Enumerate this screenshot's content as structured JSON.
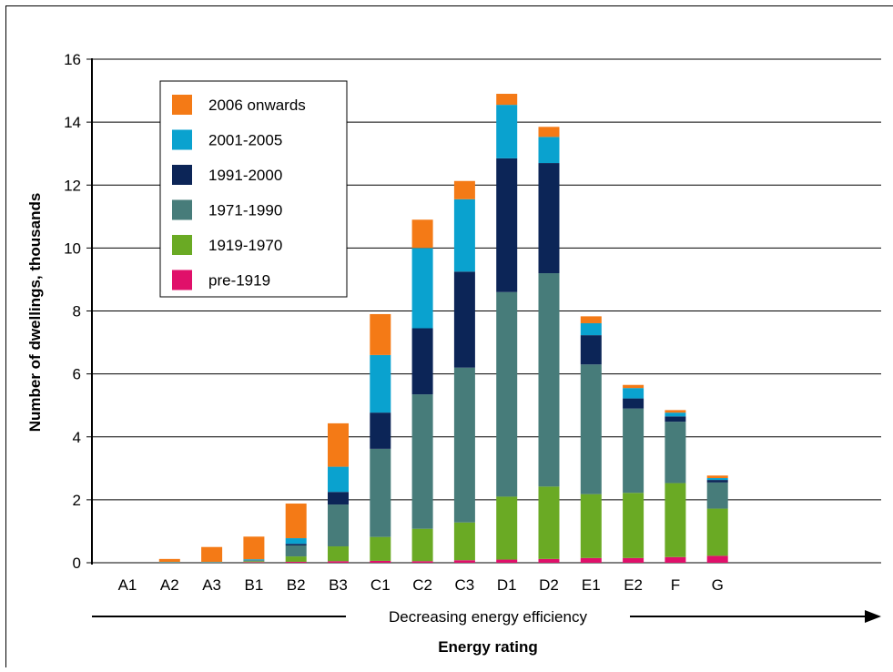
{
  "chart_data": {
    "type": "bar",
    "stacked": true,
    "title": "",
    "xlabel": "Energy rating",
    "xlabel_arrow_text": "Decreasing energy efficiency",
    "ylabel": "Number of dwellings, thousands",
    "ylim": [
      0,
      16
    ],
    "yticks": [
      0,
      2,
      4,
      6,
      8,
      10,
      12,
      14,
      16
    ],
    "grid": "horizontal",
    "legend_position": "top-left",
    "categories": [
      "A1",
      "A2",
      "A3",
      "B1",
      "B2",
      "B3",
      "C1",
      "C2",
      "C3",
      "D1",
      "D2",
      "E1",
      "E2",
      "F",
      "G"
    ],
    "series": [
      {
        "name": "pre-1919",
        "color": "#e0106a",
        "values": [
          0,
          0,
          0,
          0.02,
          0.03,
          0.05,
          0.06,
          0.05,
          0.08,
          0.1,
          0.12,
          0.15,
          0.15,
          0.18,
          0.22
        ]
      },
      {
        "name": "1919-1970",
        "color": "#6aaa24",
        "values": [
          0,
          0,
          0,
          0.03,
          0.17,
          0.47,
          0.76,
          1.03,
          1.2,
          2.0,
          2.3,
          2.03,
          2.07,
          2.35,
          1.5
        ]
      },
      {
        "name": "1971-1990",
        "color": "#477c7a",
        "values": [
          0,
          0,
          0,
          0.03,
          0.35,
          1.33,
          2.8,
          4.27,
          4.92,
          6.5,
          6.78,
          4.12,
          2.68,
          1.95,
          0.83
        ]
      },
      {
        "name": "1991-2000",
        "color": "#0c2557",
        "values": [
          0,
          0,
          0,
          0,
          0.05,
          0.4,
          1.15,
          2.1,
          3.05,
          4.25,
          3.5,
          0.93,
          0.32,
          0.17,
          0.08
        ]
      },
      {
        "name": "2001-2005",
        "color": "#0aa2cf",
        "values": [
          0,
          0.02,
          0.02,
          0.03,
          0.18,
          0.8,
          1.83,
          2.55,
          2.3,
          1.7,
          0.83,
          0.38,
          0.33,
          0.12,
          0.06
        ]
      },
      {
        "name": "2006 onwards",
        "color": "#f47a16",
        "values": [
          0,
          0.1,
          0.48,
          0.72,
          1.1,
          1.38,
          1.3,
          0.9,
          0.58,
          0.35,
          0.32,
          0.22,
          0.1,
          0.08,
          0.08
        ]
      }
    ]
  }
}
